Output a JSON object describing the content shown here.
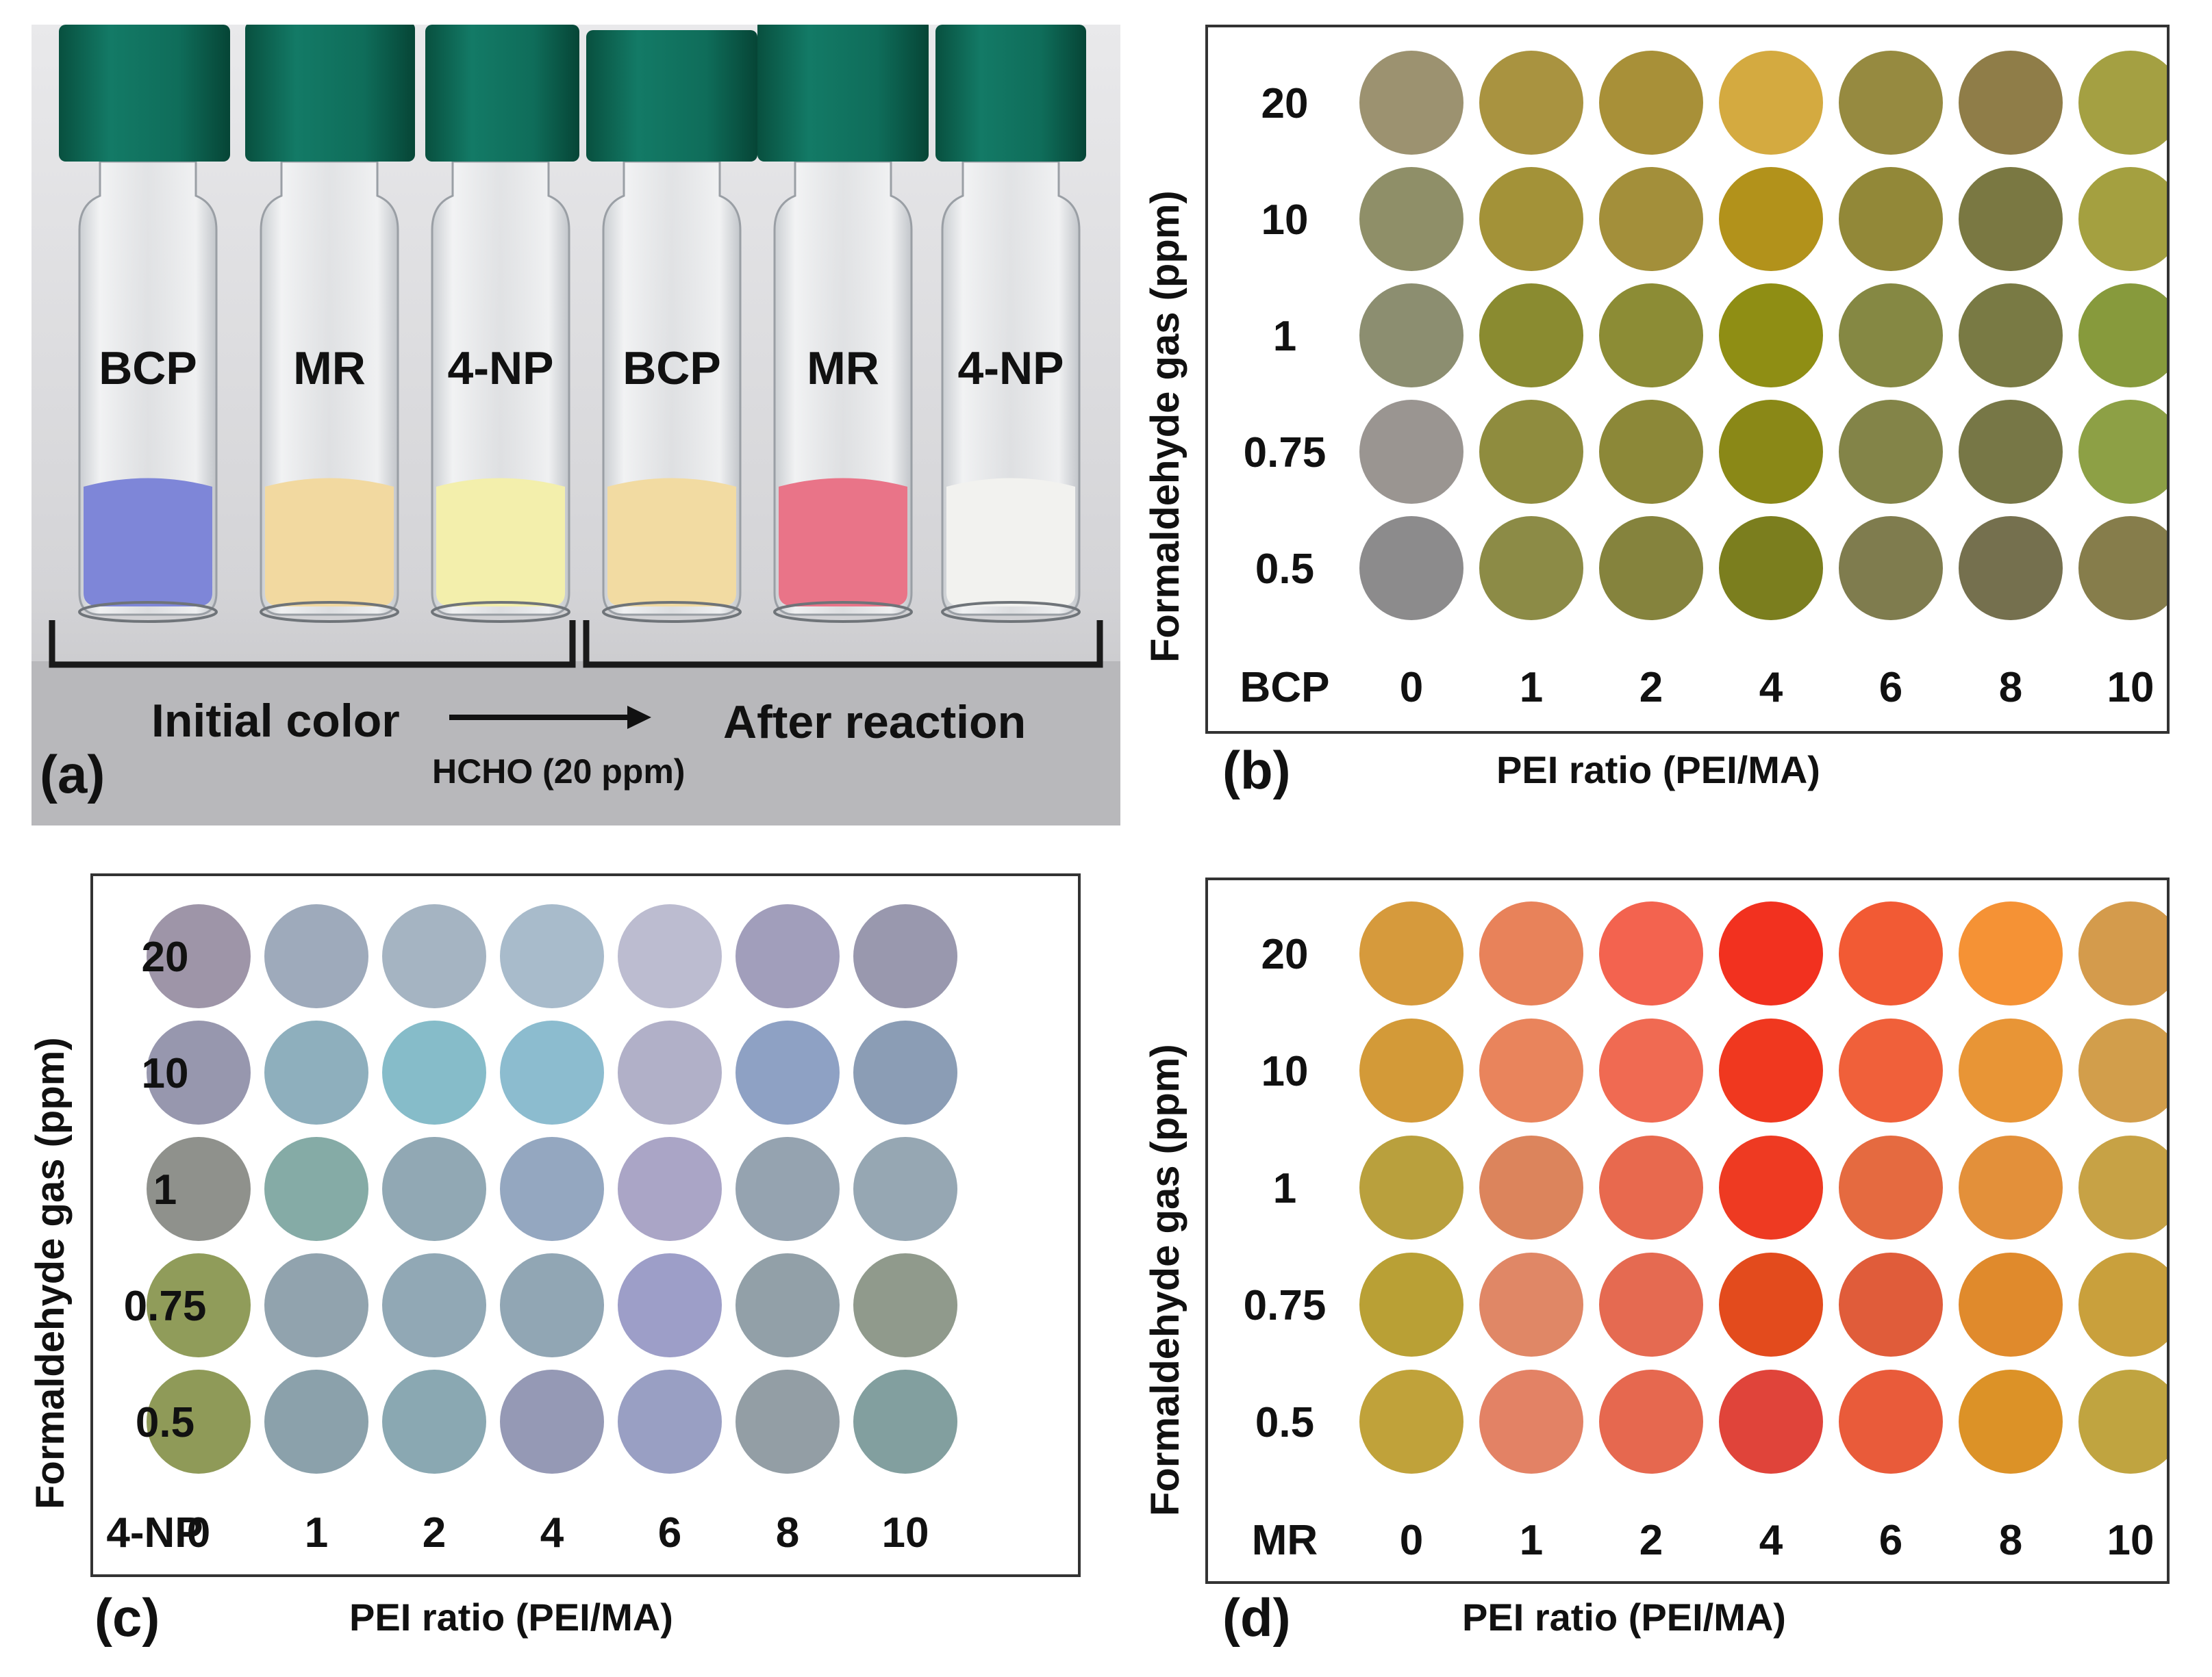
{
  "panel_a": {
    "letter": "(a)",
    "vial_labels": [
      "BCP",
      "MR",
      "4-NP",
      "BCP",
      "MR",
      "4-NP"
    ],
    "powder_colors": [
      "#7e86d8",
      "#f2d9a0",
      "#f3efac",
      "#f2dba2",
      "#e97488",
      "#f2f2ef"
    ],
    "cap_color": "#10705f",
    "initial_label": "Initial color",
    "after_label": "After reaction",
    "condition_label": "HCHO (20 ppm)"
  },
  "panel_b": {
    "letter": "(b)",
    "dye": "BCP",
    "y_title": "Formaldehyde gas (ppm)",
    "x_title": "PEI ratio (PEI/MA)",
    "rows": [
      "20",
      "10",
      "1",
      "0.75",
      "0.5"
    ],
    "cols": [
      "0",
      "1",
      "2",
      "4",
      "6",
      "8",
      "10"
    ],
    "colors": [
      [
        "#9c9270",
        "#a99340",
        "#a89038",
        "#d4aa40",
        "#968a40",
        "#8f7d48",
        "#a4a042"
      ],
      [
        "#8f8f68",
        "#a39238",
        "#a38f3a",
        "#b2921b",
        "#928838",
        "#7a7842",
        "#a4a040"
      ],
      [
        "#8c8e70",
        "#8a8b30",
        "#8c8c35",
        "#8f8e14",
        "#858843",
        "#797a44",
        "#879a3c"
      ],
      [
        "#9a9591",
        "#8f8c3e",
        "#8c8838",
        "#8a8817",
        "#838448",
        "#777746",
        "#8da045"
      ],
      [
        "#8c8b8c",
        "#8c8b46",
        "#85833d",
        "#7b7e1e",
        "#7f7c4e",
        "#75704e",
        "#867d4b"
      ]
    ]
  },
  "panel_c": {
    "letter": "(c)",
    "dye": "4-NP",
    "y_title": "Formaldehyde gas (ppm)",
    "x_title": "PEI ratio (PEI/MA)",
    "rows": [
      "20",
      "10",
      "1",
      "0.75",
      "0.5"
    ],
    "cols": [
      "0",
      "1",
      "2",
      "4",
      "6",
      "8",
      "10"
    ],
    "colors": [
      [
        "#9e95a8",
        "#9eaabb",
        "#a5b4c2",
        "#a8bbcb",
        "#bcbcd0",
        "#a19ebb",
        "#9998ae"
      ],
      [
        "#9797ae",
        "#8eafbd",
        "#86bcc9",
        "#8cbccf",
        "#b1b0c8",
        "#8ea1c4",
        "#8b9db5"
      ],
      [
        "#8f918c",
        "#85aba6",
        "#91a8b4",
        "#94a7c0",
        "#aaa5c6",
        "#95a3b0",
        "#96a7b3"
      ],
      [
        "#909c5a",
        "#91a3ae",
        "#91a8b5",
        "#91a6b4",
        "#9d9ec8",
        "#92a0a8",
        "#909a8c"
      ],
      [
        "#8f9a58",
        "#8ba1ab",
        "#8aa8b2",
        "#9599b5",
        "#999fc3",
        "#939ea5",
        "#829f9f"
      ]
    ]
  },
  "panel_d": {
    "letter": "(d)",
    "dye": "MR",
    "y_title": "Formaldehyde gas (ppm)",
    "x_title": "PEI ratio (PEI/MA)",
    "rows": [
      "20",
      "10",
      "1",
      "0.75",
      "0.5"
    ],
    "cols": [
      "0",
      "1",
      "2",
      "4",
      "6",
      "8",
      "10"
    ],
    "colors": [
      [
        "#d69a3c",
        "#e8825a",
        "#f3634f",
        "#f2311f",
        "#f25a34",
        "#f59235",
        "#d49b4c"
      ],
      [
        "#d39a38",
        "#e9845c",
        "#f06a52",
        "#f0381f",
        "#f0603a",
        "#e89536",
        "#d29e4b"
      ],
      [
        "#b9a03d",
        "#dc845c",
        "#e8694e",
        "#ee3a22",
        "#e56a40",
        "#e3903a",
        "#c7a245"
      ],
      [
        "#b9a035",
        "#e08766",
        "#e56a51",
        "#e34b1d",
        "#e05c3a",
        "#e08a2c",
        "#c9a03c"
      ],
      [
        "#c0a23a",
        "#e38265",
        "#e6684f",
        "#e0443a",
        "#e95b3a",
        "#dc9227",
        "#c0a440"
      ]
    ]
  }
}
